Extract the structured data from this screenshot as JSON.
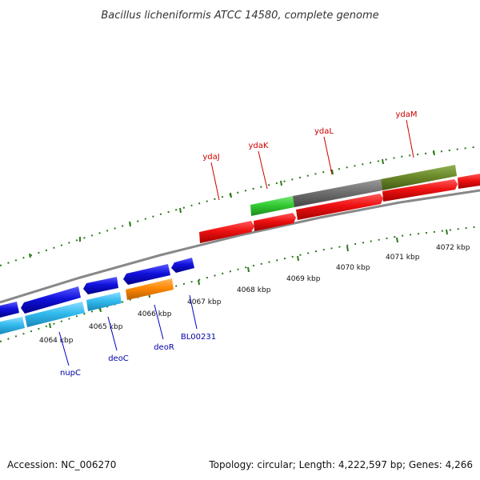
{
  "title": "Bacillus licheniformis ATCC 14580, complete genome",
  "footer": {
    "accession": "Accession: NC_006270",
    "summary": "Topology: circular; Length: 4,222,597 bp; Genes: 4,266"
  },
  "kbp_labels": [
    "4064 kbp",
    "4065 kbp",
    "4066 kbp",
    "4067 kbp",
    "4068 kbp",
    "4069 kbp",
    "4070 kbp",
    "4071 kbp",
    "4072 kbp"
  ],
  "gene_labels_top": [
    "ydaJ",
    "ydaK",
    "ydaL",
    "ydaM"
  ],
  "gene_labels_bottom": [
    "nupC",
    "deoC",
    "deoR",
    "BL00231"
  ],
  "colors": {
    "red": "#ee1111",
    "green": "#33cc33",
    "gray": "#707070",
    "olive": "#6b8a2a",
    "blue": "#1111dd",
    "cyan": "#33bbee",
    "orange": "#ff8800",
    "tick": "#2a7a1a",
    "backbone": "#888888"
  }
}
